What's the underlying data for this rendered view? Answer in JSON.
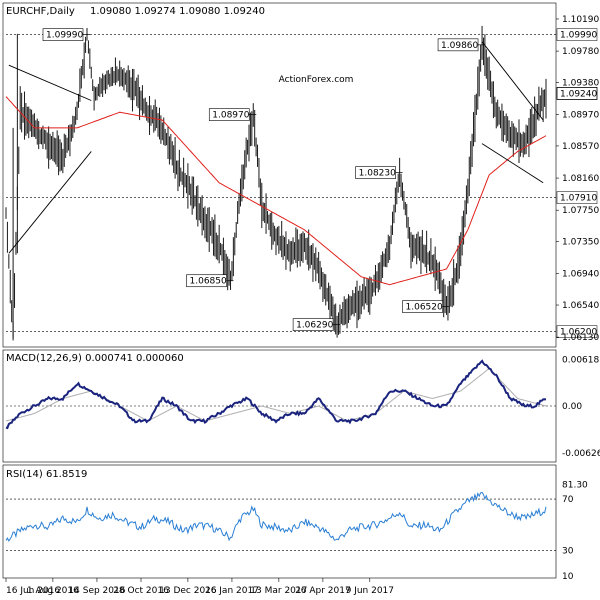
{
  "chart_data": [
    {
      "type": "ohlc-bar",
      "header_label": "EURCHF,Daily",
      "header_values": "1.09080 1.09274 1.09080 1.09240",
      "watermark": "ActionForex.com",
      "ylim": [
        1.0603,
        1.1033
      ],
      "y_ticks": [
        "1.10190",
        "1.09780",
        "1.09380",
        "1.08970",
        "1.08570",
        "1.08160",
        "1.07750",
        "1.07350",
        "1.06940",
        "1.06540",
        "1.06130"
      ],
      "y_tick_values": [
        1.1019,
        1.0978,
        1.0938,
        1.0897,
        1.0857,
        1.0816,
        1.0775,
        1.0735,
        1.0694,
        1.0654,
        1.0613
      ],
      "x_ticks": [
        "16 Jun 2016",
        "1 Aug 2016",
        "14 Sep 2016",
        "28 Oct 2016",
        "13 Dec 2016",
        "26 Jan 2017",
        "13 Mar 2017",
        "26 Apr 2017",
        "9 Jun 2017"
      ],
      "x_tick_index": [
        0,
        33,
        64,
        95,
        128,
        159,
        192,
        223,
        256
      ],
      "current_price": "1.09240",
      "horizontal_levels": [
        {
          "label": "1.09990",
          "value": 1.0999
        },
        {
          "label": "1.07910",
          "value": 1.0791
        },
        {
          "label": "1.06200",
          "value": 1.062
        }
      ],
      "annotations": [
        {
          "label": "1.09990",
          "value": 1.0999,
          "index": 57
        },
        {
          "label": "1.08970",
          "value": 1.0897,
          "index": 174
        },
        {
          "label": "1.06850",
          "value": 1.0685,
          "index": 158
        },
        {
          "label": "1.06290",
          "value": 1.0629,
          "index": 233
        },
        {
          "label": "1.08230",
          "value": 1.0823,
          "index": 277
        },
        {
          "label": "1.06520",
          "value": 1.0652,
          "index": 310
        },
        {
          "label": "1.09860",
          "value": 1.0986,
          "index": 335
        }
      ],
      "series": [
        {
          "name": "price",
          "points": [
            [
              0,
              1.077
            ],
            [
              5,
              1.062
            ],
            [
              10,
              1.09
            ],
            [
              20,
              1.088
            ],
            [
              30,
              1.086
            ],
            [
              40,
              1.084
            ],
            [
              50,
              1.09
            ],
            [
              57,
              1.0999
            ],
            [
              62,
              1.092
            ],
            [
              70,
              1.094
            ],
            [
              80,
              1.095
            ],
            [
              90,
              1.093
            ],
            [
              100,
              1.09
            ],
            [
              110,
              1.088
            ],
            [
              120,
              1.083
            ],
            [
              130,
              1.08
            ],
            [
              140,
              1.076
            ],
            [
              150,
              1.073
            ],
            [
              158,
              1.0685
            ],
            [
              165,
              1.08
            ],
            [
              174,
              1.0897
            ],
            [
              180,
              1.078
            ],
            [
              190,
              1.074
            ],
            [
              200,
              1.072
            ],
            [
              210,
              1.073
            ],
            [
              220,
              1.07
            ],
            [
              233,
              1.0629
            ],
            [
              240,
              1.065
            ],
            [
              250,
              1.066
            ],
            [
              260,
              1.068
            ],
            [
              270,
              1.073
            ],
            [
              277,
              1.0823
            ],
            [
              285,
              1.073
            ],
            [
              295,
              1.072
            ],
            [
              303,
              1.07
            ],
            [
              310,
              1.0652
            ],
            [
              318,
              1.07
            ],
            [
              325,
              1.08
            ],
            [
              335,
              1.0986
            ],
            [
              345,
              1.09
            ],
            [
              355,
              1.087
            ],
            [
              365,
              1.086
            ],
            [
              372,
              1.089
            ],
            [
              380,
              1.0924
            ]
          ]
        },
        {
          "name": "ma",
          "points": [
            [
              0,
              1.092
            ],
            [
              20,
              1.088
            ],
            [
              50,
              1.088
            ],
            [
              80,
              1.09
            ],
            [
              110,
              1.089
            ],
            [
              130,
              1.085
            ],
            [
              150,
              1.081
            ],
            [
              170,
              1.079
            ],
            [
              190,
              1.077
            ],
            [
              210,
              1.075
            ],
            [
              230,
              1.072
            ],
            [
              250,
              1.069
            ],
            [
              270,
              1.068
            ],
            [
              290,
              1.069
            ],
            [
              310,
              1.07
            ],
            [
              325,
              1.075
            ],
            [
              340,
              1.082
            ],
            [
              360,
              1.085
            ],
            [
              380,
              1.087
            ]
          ]
        }
      ],
      "upper_channel": [
        [
          2,
          1.096
        ],
        [
          60,
          1.0915
        ]
      ],
      "lower_channel": [
        [
          2,
          1.072
        ],
        [
          60,
          1.085
        ]
      ],
      "down_channel_upper": [
        [
          335,
          1.099
        ],
        [
          378,
          1.089
        ]
      ],
      "down_channel_lower": [
        [
          335,
          1.086
        ],
        [
          378,
          1.081
        ]
      ]
    },
    {
      "type": "line",
      "header_label": "MACD(12,26,9) 0.000741 0.000060",
      "ylim": [
        -0.0072,
        0.0072
      ],
      "y_ticks": [
        "0.00618",
        "0.00",
        "-0.00626"
      ],
      "y_tick_values": [
        0.00618,
        0.0,
        -0.00626
      ],
      "series": [
        {
          "name": "macd",
          "points": [
            [
              0,
              -0.003
            ],
            [
              10,
              -0.001
            ],
            [
              20,
              0.0
            ],
            [
              30,
              0.001
            ],
            [
              40,
              0.001
            ],
            [
              50,
              0.003
            ],
            [
              60,
              0.002
            ],
            [
              70,
              0.001
            ],
            [
              80,
              0.0
            ],
            [
              90,
              -0.002
            ],
            [
              100,
              -0.002
            ],
            [
              110,
              0.001
            ],
            [
              120,
              0.0
            ],
            [
              130,
              -0.002
            ],
            [
              140,
              -0.002
            ],
            [
              150,
              -0.001
            ],
            [
              158,
              0.0
            ],
            [
              170,
              0.001
            ],
            [
              180,
              -0.001
            ],
            [
              190,
              -0.002
            ],
            [
              200,
              -0.001
            ],
            [
              210,
              -0.001
            ],
            [
              220,
              0.001
            ],
            [
              233,
              -0.002
            ],
            [
              245,
              -0.002
            ],
            [
              260,
              -0.001
            ],
            [
              270,
              0.002
            ],
            [
              280,
              0.002
            ],
            [
              290,
              0.001
            ],
            [
              300,
              0.0
            ],
            [
              310,
              0.0
            ],
            [
              320,
              0.003
            ],
            [
              335,
              0.006
            ],
            [
              345,
              0.004
            ],
            [
              355,
              0.001
            ],
            [
              365,
              0.0
            ],
            [
              372,
              0.0
            ],
            [
              380,
              0.001
            ]
          ]
        },
        {
          "name": "signal",
          "points": [
            [
              0,
              -0.002
            ],
            [
              20,
              -0.001
            ],
            [
              40,
              0.001
            ],
            [
              60,
              0.002
            ],
            [
              80,
              0.0
            ],
            [
              100,
              -0.002
            ],
            [
              120,
              0.0
            ],
            [
              140,
              -0.002
            ],
            [
              160,
              -0.001
            ],
            [
              180,
              0.0
            ],
            [
              200,
              -0.001
            ],
            [
              220,
              0.0
            ],
            [
              240,
              -0.002
            ],
            [
              260,
              -0.001
            ],
            [
              280,
              0.002
            ],
            [
              300,
              0.001
            ],
            [
              320,
              0.002
            ],
            [
              340,
              0.005
            ],
            [
              360,
              0.001
            ],
            [
              380,
              0.0
            ]
          ]
        }
      ]
    },
    {
      "type": "line",
      "header_label": "RSI(14) 61.8519",
      "ylim": [
        10,
        95
      ],
      "y_ticks": [
        "81.30",
        "70",
        "30",
        "10"
      ],
      "y_tick_values": [
        81.3,
        70,
        30,
        10
      ],
      "series": [
        {
          "name": "rsi",
          "points": [
            [
              0,
              38
            ],
            [
              10,
              45
            ],
            [
              20,
              50
            ],
            [
              30,
              48
            ],
            [
              40,
              55
            ],
            [
              50,
              52
            ],
            [
              57,
              62
            ],
            [
              65,
              55
            ],
            [
              75,
              58
            ],
            [
              85,
              52
            ],
            [
              95,
              48
            ],
            [
              105,
              55
            ],
            [
              115,
              52
            ],
            [
              125,
              45
            ],
            [
              135,
              50
            ],
            [
              145,
              48
            ],
            [
              158,
              40
            ],
            [
              165,
              55
            ],
            [
              174,
              62
            ],
            [
              180,
              50
            ],
            [
              190,
              48
            ],
            [
              200,
              45
            ],
            [
              210,
              52
            ],
            [
              220,
              48
            ],
            [
              233,
              38
            ],
            [
              240,
              45
            ],
            [
              250,
              48
            ],
            [
              260,
              50
            ],
            [
              270,
              55
            ],
            [
              277,
              60
            ],
            [
              285,
              48
            ],
            [
              295,
              50
            ],
            [
              305,
              45
            ],
            [
              315,
              58
            ],
            [
              325,
              68
            ],
            [
              335,
              73
            ],
            [
              345,
              65
            ],
            [
              355,
              58
            ],
            [
              365,
              55
            ],
            [
              372,
              58
            ],
            [
              380,
              62
            ]
          ]
        }
      ]
    }
  ]
}
